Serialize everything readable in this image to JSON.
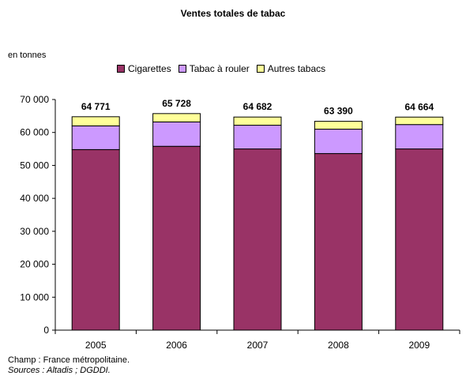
{
  "title": "Ventes totales de tabac",
  "unit_label": "en tonnes",
  "footer": {
    "note": "Champ : France métropolitaine.",
    "source": "Sources : Altadis ; DGDDI."
  },
  "chart_data": {
    "type": "bar",
    "stacked": true,
    "categories": [
      "2005",
      "2006",
      "2007",
      "2008",
      "2009"
    ],
    "series": [
      {
        "name": "Cigarettes",
        "color": "#993366",
        "values": [
          54800,
          55800,
          55000,
          53600,
          55000
        ]
      },
      {
        "name": "Tabac à rouler",
        "color": "#CC99FF",
        "values": [
          7200,
          7400,
          7200,
          7400,
          7400
        ]
      },
      {
        "name": "Autres tabacs",
        "color": "#FFFF99",
        "values": [
          2771,
          2528,
          2482,
          2390,
          2264
        ]
      }
    ],
    "totals": [
      "64 771",
      "65 728",
      "64 682",
      "63 390",
      "64 664"
    ],
    "ylim": [
      0,
      70000
    ],
    "yticks": [
      0,
      10000,
      20000,
      30000,
      40000,
      50000,
      60000,
      70000
    ],
    "ytick_labels": [
      "0",
      "10 000",
      "20 000",
      "30 000",
      "40 000",
      "50 000",
      "60 000",
      "70 000"
    ],
    "legend_position": "top",
    "grid": false
  }
}
